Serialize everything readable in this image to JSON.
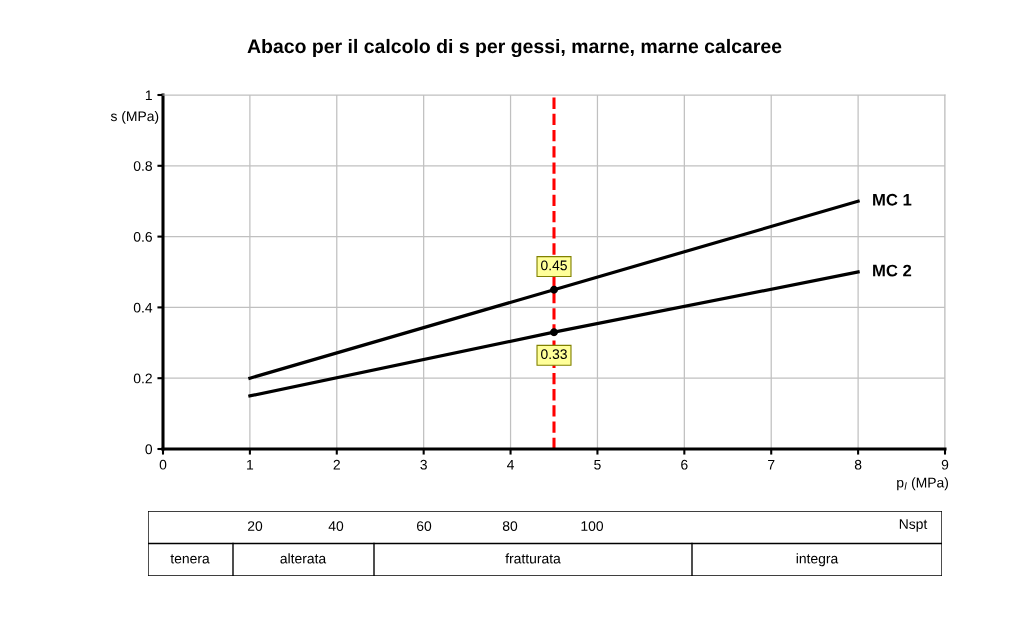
{
  "chart_data": {
    "type": "line",
    "title": "Abaco per il calcolo di s per gessi, marne, marne calcaree",
    "xlabel": "p$_{l}$ (MPa)",
    "ylabel": "s (MPa)",
    "series": [
      {
        "name": "MC 1",
        "color": "#000000",
        "marker": "none",
        "x": [
          1,
          4.5,
          8
        ],
        "values": [
          0.2,
          0.45,
          0.7
        ]
      },
      {
        "name": "MC 2",
        "color": "#000000",
        "marker": "none",
        "x": [
          1,
          4.5,
          8
        ],
        "values": [
          0.15,
          0.33,
          0.5
        ]
      },
      {
        "type": "scatter",
        "color": "#000000",
        "marker": "circle",
        "x": [
          4.5,
          4.5
        ],
        "values": [
          0.45,
          0.33
        ],
        "value_labels": [
          "0.45",
          "0.33"
        ]
      }
    ],
    "xlim": [
      0,
      9
    ],
    "xticks": [
      0,
      1,
      2,
      3,
      4,
      5,
      6,
      7,
      8,
      9
    ],
    "ylim": [
      0,
      1
    ],
    "yticks": [
      0,
      0.2,
      0.4,
      0.6,
      0.8,
      1
    ],
    "grid": true,
    "line_style": "solid",
    "ref_lines": [
      {
        "axis": "x",
        "value": 4.5,
        "color": "#ff0000",
        "line_style": "dashed"
      }
    ],
    "annotations": [
      "20",
      "40",
      "60",
      "80",
      "100",
      "Nspt",
      "tenera",
      "alterata",
      "fratturata",
      "integra"
    ]
  }
}
